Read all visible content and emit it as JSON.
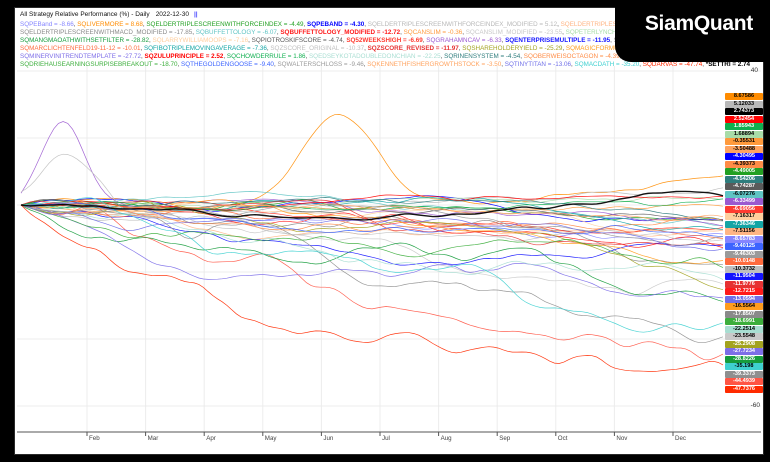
{
  "brand": "SiamQuant",
  "titlebar": {
    "title": "All Strategy Relative Performance (%) - Daily",
    "date": "2022-12-30",
    "cursor": "||"
  },
  "chart_data": {
    "type": "line",
    "title": "All Strategy Relative Performance (%)",
    "periodicity": "Daily",
    "as_of_date": "2022-12-30",
    "grid": "on",
    "x_axis": {
      "months": [
        "Feb",
        "Mar",
        "Apr",
        "May",
        "Jun",
        "Jul",
        "Aug",
        "Sep",
        "Oct",
        "Nov",
        "Dec"
      ]
    },
    "y_axis": {
      "min": -60,
      "max": 40,
      "ticks": [
        40,
        20,
        0,
        -20,
        -40,
        -60
      ],
      "visible_ticks": [
        40,
        -60
      ]
    },
    "series": [
      {
        "name": "SQPEBand",
        "legend_value": "-8.66",
        "tag": "-8.65783",
        "color": "#8585ff",
        "bold": false
      },
      {
        "name": "SQLIVERMORE",
        "legend_value": "8.68",
        "tag": "8.67586",
        "color": "#ff8c00",
        "bold": false,
        "peak": {
          "t": 0.45,
          "h": 26,
          "w": 0.05
        }
      },
      {
        "name": "SQELDERTRIPLESCREENWITHFORCEINDEX",
        "legend_value": "-4.49",
        "tag": "-4.49005",
        "color": "#22a022",
        "bold": false
      },
      {
        "name": "SQPEBAND",
        "legend_value": "-4.30",
        "tag": "-4.30495",
        "color": "#0000ff",
        "bold": true
      },
      {
        "name": "SQELDERTRIPLESCREENWITHFORCEINDEX_MODIFIED",
        "legend_value": "5.12",
        "tag": "5.12033",
        "color": "#b8b8b8",
        "bold": false
      },
      {
        "name": "SQELDERTRIPLESCREENWITHMACD",
        "legend_value": "-7.51",
        "tag": "-7.51156",
        "color": "#ffb584",
        "bold": false
      },
      {
        "name": "SQELDERTRIPLESCREENWITHMACD_MODIFIED",
        "legend_value": "-17.85",
        "tag": "-17.8507",
        "color": "#8a8a8a",
        "bold": false
      },
      {
        "name": "SQBUFFETTOLOGY",
        "legend_value": "-6.07",
        "tag": "-6.07276",
        "color": "#5fc4c4",
        "bold": false
      },
      {
        "name": "SQBUFFETTOLOGY_MODIFIED",
        "legend_value": "-12.72",
        "tag": "-12.7215",
        "color": "#ff1a1a",
        "bold": true
      },
      {
        "name": "SQCANSLIM",
        "legend_value": "-0.36",
        "tag": "-0.35531",
        "color": "#ff9a3c",
        "bold": false
      },
      {
        "name": "SQCANSLIM_MODIFIED",
        "legend_value": "-23.55",
        "tag": "-23.5548",
        "color": "#c9c9c9",
        "bold": false
      },
      {
        "name": "SQPETERLYNCHTENBAGGER_ORIGINAL",
        "legend_value": "1.69",
        "tag": "1.68894",
        "color": "#a8dca8",
        "bold": false
      },
      {
        "name": "",
        "legend_value": "-44.49",
        "tag": "-44.4939",
        "color": "#ff5544",
        "bold": false
      },
      {
        "name": "SQMANGMAOATHWITHSETFILTER",
        "legend_value": "-28.82",
        "tag": "-28.8226",
        "color": "#169c3c",
        "bold": false
      },
      {
        "name": "SQLARRYWILLIAMOOPS",
        "legend_value": "-7.16",
        "tag": "-7.16317",
        "color": "#ffcf9e",
        "bold": false
      },
      {
        "name": "SQPIOTROSKIFSCORE",
        "legend_value": "-4.74",
        "tag": "-4.74287",
        "color": "#5a5a5a",
        "bold": false
      },
      {
        "name": "SQ52WEEKSHIGH",
        "legend_value": "-6.69",
        "tag": "-6.69056",
        "color": "#ff3b30",
        "bold": true
      },
      {
        "name": "SQGRAHAMNCAV",
        "legend_value": "-6.33",
        "tag": "-6.33499",
        "color": "#9b59d0",
        "bold": false,
        "peak": {
          "t": 0.06,
          "h": 26,
          "w": 0.03
        }
      },
      {
        "name": "SQENTERPRISEMULTIPLE",
        "legend_value": "-11.95",
        "tag": "-11.9504",
        "color": "#1414ff",
        "bold": true
      },
      {
        "name": "SQTURTLETRADINGSIGNALS",
        "legend_value": "-39.34",
        "tag": "-39.3373",
        "color": "#8f8f8f",
        "bold": false
      },
      {
        "name": "SQMARCLICHTENFELD19-11-12",
        "legend_value": "-10.01",
        "tag": "-10.0148",
        "color": "#ff6a3d",
        "bold": false
      },
      {
        "name": "SQFIBOTRIPLEMOVINGAVERAGE",
        "legend_value": "-7.36",
        "tag": "-7.36346",
        "color": "#12a5a5",
        "bold": false
      },
      {
        "name": "SQZSCORE_ORIGINAL",
        "legend_value": "-10.37",
        "tag": "-10.3732",
        "color": "#bfbfbf",
        "bold": false,
        "peak": {
          "t": 0.07,
          "h": 18,
          "w": 0.04
        }
      },
      {
        "name": "SQZSCORE_REVISED",
        "legend_value": "-11.97",
        "tag": "-11.9776",
        "color": "#e63232",
        "bold": true
      },
      {
        "name": "SQSHAREHOLDERYIELD",
        "legend_value": "-25.29",
        "tag": "-25.2908",
        "color": "#a3a31f",
        "bold": false
      },
      {
        "name": "SQMAGICFORMULA",
        "legend_value": "-16.56",
        "tag": "-16.5564",
        "color": "#ff9d1e",
        "bold": false
      },
      {
        "name": "SQMINERVINITRENDTEMPLATE",
        "legend_value": "-27.72",
        "tag": "-27.7234",
        "color": "#7d6ee8",
        "bold": false
      },
      {
        "name": "SQZULUPRINCIPLE",
        "legend_value": "2.52",
        "tag": "2.52454",
        "color": "#ff0000",
        "bold": true
      },
      {
        "name": "SQCHOWDERRULE",
        "legend_value": "1.86",
        "tag": "1.85943",
        "color": "#0faf4f",
        "bold": false
      },
      {
        "name": "SQEDSEYKOTADOUBLEDONCHIAN",
        "legend_value": "-22.25",
        "tag": "-22.2514",
        "color": "#a8ded2",
        "bold": false
      },
      {
        "name": "SQRINENSYSTEM",
        "legend_value": "-4.54",
        "tag": "-4.54206",
        "color": "#2e7d7d",
        "bold": false
      },
      {
        "name": "SQOBERWEISOCTAGON",
        "legend_value": "-4.39",
        "tag": "-4.39373",
        "color": "#ff8c46",
        "bold": false
      },
      {
        "name": "SQDRIEHAUSEARNINGSURPISEBREAKOUT",
        "legend_value": "-18.70",
        "tag": "-18.6991",
        "color": "#3cae3c",
        "bold": false
      },
      {
        "name": "SQTHEGOLDENGOOSE",
        "legend_value": "-9.40",
        "tag": "-9.40125",
        "color": "#3c64ff",
        "bold": false
      },
      {
        "name": "SQWALTERSCHLOSS",
        "legend_value": "-9.46",
        "tag": "-9.46303",
        "color": "#9a9a9a",
        "bold": false
      },
      {
        "name": "SQKENNETHFISHERGROWTHSTOCK",
        "legend_value": "-3.50",
        "tag": "-3.50488",
        "color": "#ffa35f",
        "bold": false
      },
      {
        "name": "SQTINYTITAN",
        "legend_value": "-13.06",
        "tag": "-13.0594",
        "color": "#6f6fe8",
        "bold": false
      },
      {
        "name": "SQMACDATH",
        "legend_value": "-35.20",
        "tag": "-35.198",
        "color": "#3fd0d0",
        "bold": false
      },
      {
        "name": "SQDARVAS",
        "legend_value": "-47.74",
        "tag": "-47.7376",
        "color": "#ff2a00",
        "bold": false
      },
      {
        "name": "*SETTRI",
        "legend_value": "2.74",
        "tag": "2.74373",
        "color": "#000000",
        "bold": true
      }
    ]
  }
}
